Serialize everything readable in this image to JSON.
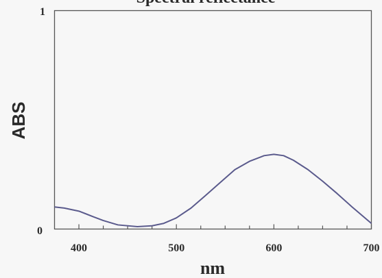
{
  "chart_data": {
    "type": "line",
    "title": "Spectral reflectance",
    "xlabel": "nm",
    "ylabel": "ABS",
    "xlim": [
      375,
      700
    ],
    "ylim": [
      0,
      1
    ],
    "x_ticks": [
      400,
      500,
      600,
      700
    ],
    "x_tick_labels": [
      "400",
      "500",
      "600",
      "700"
    ],
    "y_tick_labels": [
      "0",
      "1"
    ],
    "grid": false,
    "legend": "none",
    "line_color": "#5a5a8c",
    "series": [
      {
        "x": [
          375,
          385,
          400,
          415,
          425,
          440,
          460,
          475,
          487,
          500,
          515,
          530,
          545,
          560,
          575,
          590,
          600,
          610,
          620,
          635,
          650,
          665,
          680,
          700
        ],
        "values": [
          0.101,
          0.096,
          0.082,
          0.056,
          0.039,
          0.019,
          0.011,
          0.015,
          0.026,
          0.051,
          0.096,
          0.154,
          0.213,
          0.272,
          0.31,
          0.336,
          0.342,
          0.336,
          0.315,
          0.272,
          0.219,
          0.162,
          0.102,
          0.026
        ]
      }
    ]
  }
}
